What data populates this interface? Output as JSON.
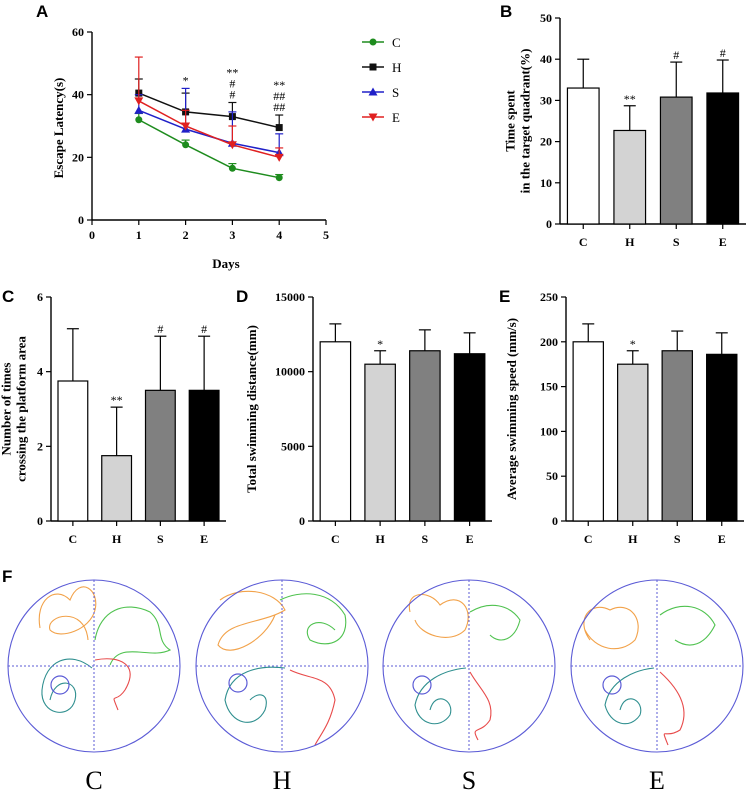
{
  "colors": {
    "C": "#1e8c1e",
    "H": "#111111",
    "S": "#2020c8",
    "E": "#e02020",
    "bar_fills": [
      "#ffffff",
      "#d3d3d3",
      "#808080",
      "#000000"
    ],
    "arena": "#5b5bd6",
    "track_orange": "#f2a24a",
    "track_green": "#4fc24f",
    "track_red": "#e84a4a",
    "track_teal": "#2f8f8f"
  },
  "chart_data": [
    {
      "id": "A",
      "type": "line",
      "panel_label": "A",
      "xlabel": "Days",
      "ylabel": "Escape Latency(s)",
      "xlim": [
        0,
        5
      ],
      "ylim": [
        0,
        60
      ],
      "xticks": [
        "0",
        "1",
        "2",
        "3",
        "4",
        "5"
      ],
      "yticks": [
        "0",
        "20",
        "40",
        "60"
      ],
      "x": [
        1,
        2,
        3,
        4
      ],
      "series": [
        {
          "name": "C",
          "marker": "circle",
          "values": [
            32,
            24,
            16.5,
            13.5
          ],
          "err": [
            2,
            1.5,
            1.5,
            1
          ]
        },
        {
          "name": "H",
          "marker": "square",
          "values": [
            40.5,
            34.5,
            33,
            29.5
          ],
          "err": [
            4.5,
            6,
            4.5,
            4
          ]
        },
        {
          "name": "S",
          "marker": "triangle-up",
          "values": [
            35,
            29,
            24.5,
            21.5
          ],
          "err": [
            5,
            13,
            10,
            6
          ]
        },
        {
          "name": "E",
          "marker": "triangle-down",
          "values": [
            38,
            30,
            24,
            20
          ],
          "err": [
            14,
            5,
            6,
            3
          ]
        }
      ],
      "annotations": [
        {
          "x": 2,
          "lines": [
            "*"
          ]
        },
        {
          "x": 3,
          "lines": [
            "**",
            "#",
            "#"
          ]
        },
        {
          "x": 4,
          "lines": [
            "**",
            "##",
            "##"
          ]
        }
      ],
      "legend": [
        "C",
        "H",
        "S",
        "E"
      ]
    },
    {
      "id": "B",
      "type": "bar",
      "panel_label": "B",
      "ylabel_lines": [
        "Time spent",
        "in the target quadrant(%)"
      ],
      "categories": [
        "C",
        "H",
        "S",
        "E"
      ],
      "values": [
        33,
        22.7,
        30.8,
        31.8
      ],
      "err": [
        7,
        6,
        8.5,
        8
      ],
      "annotations": [
        "",
        "**",
        "#",
        "#"
      ],
      "ylim": [
        0,
        50
      ],
      "yticks": [
        "0",
        "10",
        "20",
        "30",
        "40",
        "50"
      ]
    },
    {
      "id": "C",
      "type": "bar",
      "panel_label": "C",
      "ylabel_lines": [
        "Number of times",
        "crossing the platform area"
      ],
      "categories": [
        "C",
        "H",
        "S",
        "E"
      ],
      "values": [
        3.75,
        1.75,
        3.5,
        3.5
      ],
      "err": [
        1.4,
        1.3,
        1.45,
        1.45
      ],
      "annotations": [
        "",
        "**",
        "#",
        "#"
      ],
      "ylim": [
        0,
        6
      ],
      "yticks": [
        "0",
        "2",
        "4",
        "6"
      ]
    },
    {
      "id": "D",
      "type": "bar",
      "panel_label": "D",
      "ylabel_lines": [
        "Total swimming distance(mm)"
      ],
      "categories": [
        "C",
        "H",
        "S",
        "E"
      ],
      "values": [
        12000,
        10500,
        11400,
        11200
      ],
      "err": [
        1200,
        900,
        1400,
        1400
      ],
      "annotations": [
        "",
        "*",
        "",
        ""
      ],
      "ylim": [
        0,
        15000
      ],
      "yticks": [
        "0",
        "5000",
        "10000",
        "15000"
      ]
    },
    {
      "id": "E",
      "type": "bar",
      "panel_label": "E",
      "ylabel_lines": [
        "Average swimming speed (mm/s)"
      ],
      "categories": [
        "C",
        "H",
        "S",
        "E"
      ],
      "values": [
        200,
        175,
        190,
        186
      ],
      "err": [
        20,
        15,
        22,
        24
      ],
      "annotations": [
        "",
        "*",
        "",
        ""
      ],
      "ylim": [
        0,
        250
      ],
      "yticks": [
        "0",
        "50",
        "100",
        "150",
        "200",
        "250"
      ]
    }
  ],
  "panel_f": {
    "label": "F",
    "arenas": [
      "C",
      "H",
      "S",
      "E"
    ]
  }
}
